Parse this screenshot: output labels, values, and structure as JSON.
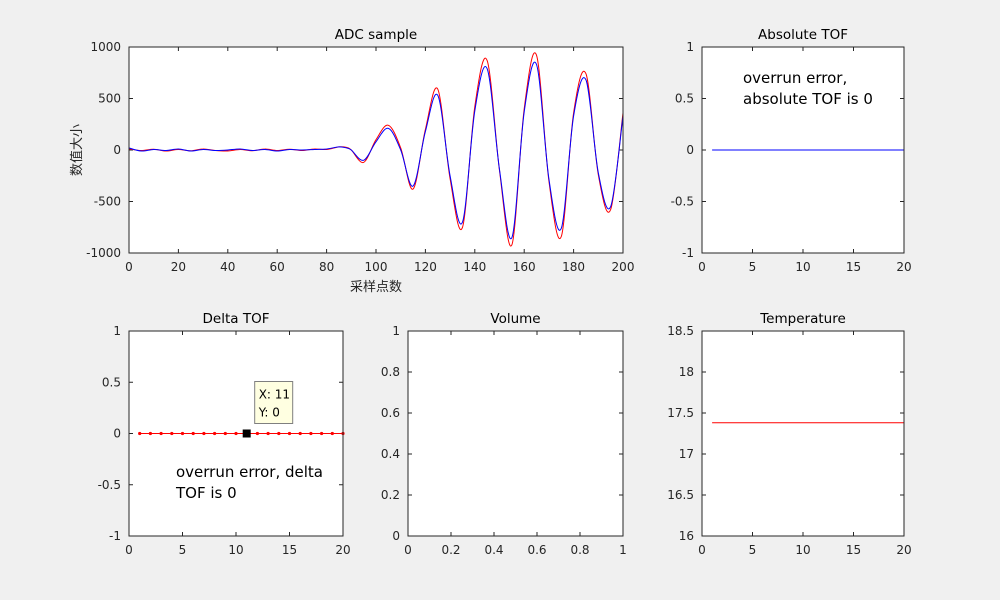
{
  "chart_data": [
    {
      "id": "adc",
      "type": "line",
      "title": "ADC sample",
      "xlabel": "采样点数",
      "ylabel": "数值大小",
      "xlim": [
        0,
        200
      ],
      "ylim": [
        -1000,
        1000
      ],
      "xticks": [
        "0",
        "20",
        "40",
        "60",
        "80",
        "100",
        "120",
        "140",
        "160",
        "180",
        "200"
      ],
      "yticks": [
        "1000",
        "500",
        "0",
        "-500",
        "-1000"
      ],
      "series_colors": [
        "#ff0000",
        "#0000ff"
      ],
      "series": [
        {
          "x": [
            0,
            5,
            10,
            15,
            20,
            25,
            30,
            35,
            40,
            45,
            50,
            55,
            60,
            65,
            70,
            75,
            80,
            85,
            88,
            90,
            95,
            100,
            105,
            110,
            115,
            120,
            125,
            130,
            135,
            140,
            145,
            150,
            155,
            160,
            165,
            170,
            175,
            180,
            185,
            190,
            195,
            200
          ],
          "values": [
            10,
            -5,
            8,
            -10,
            5,
            -8,
            10,
            -5,
            -10,
            5,
            -8,
            10,
            -5,
            8,
            -5,
            10,
            5,
            30,
            25,
            0,
            -120,
            100,
            240,
            20,
            -380,
            200,
            590,
            -280,
            -750,
            420,
            870,
            -200,
            -920,
            400,
            920,
            -300,
            -840,
            360,
            740,
            -240,
            -580,
            360
          ]
        },
        {
          "x": [
            0,
            5,
            10,
            15,
            20,
            25,
            30,
            35,
            40,
            45,
            50,
            55,
            60,
            65,
            70,
            75,
            80,
            85,
            88,
            90,
            95,
            100,
            105,
            110,
            115,
            120,
            125,
            130,
            135,
            140,
            145,
            150,
            155,
            160,
            165,
            170,
            175,
            180,
            185,
            190,
            195,
            200
          ],
          "values": [
            20,
            -10,
            5,
            -5,
            10,
            -10,
            5,
            -5,
            0,
            10,
            -5,
            5,
            -10,
            5,
            0,
            5,
            10,
            30,
            20,
            0,
            -100,
            80,
            210,
            0,
            -350,
            180,
            530,
            -250,
            -700,
            380,
            790,
            -190,
            -850,
            370,
            830,
            -280,
            -760,
            330,
            680,
            -220,
            -550,
            330
          ]
        }
      ]
    },
    {
      "id": "abs",
      "type": "line",
      "title": "Absolute TOF",
      "xlim": [
        0,
        20
      ],
      "ylim": [
        -1,
        1
      ],
      "xticks": [
        "0",
        "5",
        "10",
        "15",
        "20"
      ],
      "yticks": [
        "1",
        "0.5",
        "0",
        "-0.5",
        "-1"
      ],
      "series_colors": [
        "#0000ff"
      ],
      "series": [
        {
          "x": [
            1,
            20
          ],
          "values": [
            0,
            0
          ]
        }
      ],
      "annotation": [
        "overrun error,",
        "absolute TOF is 0"
      ]
    },
    {
      "id": "delta",
      "type": "line",
      "title": "Delta TOF",
      "xlim": [
        0,
        20
      ],
      "ylim": [
        -1,
        1
      ],
      "xticks": [
        "0",
        "5",
        "10",
        "15",
        "20"
      ],
      "yticks": [
        "1",
        "0.5",
        "0",
        "-0.5",
        "-1"
      ],
      "series_colors": [
        "#ff0000"
      ],
      "series": [
        {
          "x": [
            1,
            2,
            3,
            4,
            5,
            6,
            7,
            8,
            9,
            10,
            11,
            12,
            13,
            14,
            15,
            16,
            17,
            18,
            19,
            20
          ],
          "values": [
            0,
            0,
            0,
            0,
            0,
            0,
            0,
            0,
            0,
            0,
            0,
            0,
            0,
            0,
            0,
            0,
            0,
            0,
            0,
            0
          ]
        }
      ],
      "datatip": {
        "x": 11,
        "y": 0,
        "lines": [
          "X: 11",
          "Y: 0"
        ]
      },
      "annotation": [
        "overrun error, delta",
        "TOF is 0"
      ]
    },
    {
      "id": "vol",
      "type": "line",
      "title": "Volume",
      "xlim": [
        0,
        1
      ],
      "ylim": [
        0,
        1
      ],
      "xticks": [
        "0",
        "0.2",
        "0.4",
        "0.6",
        "0.8",
        "1"
      ],
      "yticks": [
        "1",
        "0.8",
        "0.6",
        "0.4",
        "0.2",
        "0"
      ],
      "series": []
    },
    {
      "id": "temp",
      "type": "line",
      "title": "Temperature",
      "xlim": [
        0,
        20
      ],
      "ylim": [
        16,
        18.5
      ],
      "xticks": [
        "0",
        "5",
        "10",
        "15",
        "20"
      ],
      "yticks": [
        "18.5",
        "18",
        "17.5",
        "17",
        "16.5",
        "16"
      ],
      "series_colors": [
        "#ff0000"
      ],
      "series": [
        {
          "x": [
            1,
            20
          ],
          "values": [
            17.38,
            17.38
          ]
        }
      ]
    }
  ]
}
